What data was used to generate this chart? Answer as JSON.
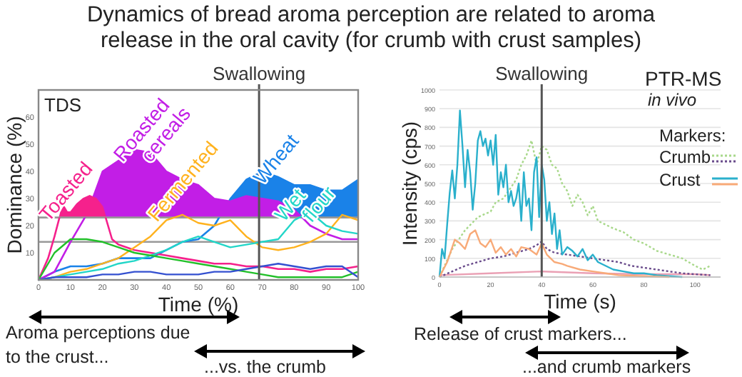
{
  "chart_data": [
    {
      "type": "line",
      "title": "Dynamics of bread aroma perception are related to aroma release in the oral cavity (for crumb with crust samples)",
      "xlabel": "Time (%)",
      "ylabel": "Dominance (%)",
      "x": [
        0,
        5,
        10,
        15,
        20,
        25,
        30,
        35,
        40,
        45,
        50,
        55,
        60,
        65,
        70,
        75,
        80,
        85,
        90,
        95,
        100
      ],
      "series": [
        {
          "name": "Wheat",
          "type": "area",
          "color": "#1a82e8",
          "values": [
            0,
            3,
            5,
            5,
            6,
            8,
            8,
            8,
            11,
            14,
            15,
            20,
            30,
            37,
            40,
            38,
            35,
            35,
            33,
            33,
            37
          ]
        },
        {
          "name": "Roasted cereals",
          "type": "area",
          "color": "#c21ee6",
          "values": [
            0,
            3,
            14,
            24,
            40,
            44,
            48,
            47,
            40,
            37,
            35,
            30,
            29,
            31,
            30,
            29,
            26,
            20,
            17,
            15,
            15
          ]
        },
        {
          "name": "Toasted",
          "type": "area",
          "color": "#f5218c",
          "x": [
            0,
            3,
            5,
            7,
            8,
            9,
            10,
            12,
            14,
            16,
            18,
            20,
            21,
            23,
            25,
            30,
            35,
            40,
            45,
            50,
            55,
            60,
            65,
            70,
            75,
            80,
            85,
            90,
            95,
            100
          ],
          "values": [
            0,
            8,
            16,
            25,
            27,
            25,
            25,
            28,
            30,
            31,
            30,
            27,
            23,
            15,
            13,
            11,
            10,
            9,
            8,
            7,
            6,
            6,
            5,
            5,
            4,
            4,
            3,
            4,
            4,
            5
          ]
        },
        {
          "name": "Fermented",
          "color": "#ffb21e",
          "values": [
            0,
            1,
            3,
            4,
            6,
            8,
            12,
            16,
            22,
            24,
            21,
            20,
            22,
            16,
            12,
            11,
            12,
            14,
            17,
            24,
            22
          ]
        },
        {
          "name": "Wet flour",
          "color": "#22d6c8",
          "values": [
            0,
            1,
            2,
            3,
            4,
            6,
            7,
            9,
            11,
            14,
            16,
            14,
            12,
            13,
            14,
            15,
            22,
            25,
            20,
            18,
            17
          ]
        },
        {
          "color": "#22c02a",
          "values": [
            0,
            10,
            15,
            15,
            14,
            12,
            10,
            9,
            8,
            7,
            6,
            5,
            4,
            3,
            2,
            1,
            1,
            1,
            1,
            1,
            3
          ]
        },
        {
          "color": "#3450d0",
          "values": [
            0,
            1,
            1,
            1,
            2,
            2,
            3,
            3,
            2,
            2,
            2,
            3,
            3,
            4,
            5,
            6,
            5,
            4,
            5,
            5,
            1
          ]
        }
      ],
      "xlim": [
        0,
        100
      ],
      "xticks": [
        0,
        10,
        20,
        30,
        40,
        50,
        60,
        70,
        80,
        90,
        100
      ],
      "ylim": [
        0,
        70
      ],
      "yticks": [
        10,
        20,
        30,
        40,
        50,
        60
      ],
      "ref_lines": [
        {
          "axis": "x",
          "value": 69,
          "label": "Swallowing",
          "color": "#555555"
        },
        {
          "axis": "y",
          "value": 14,
          "color": "#999999"
        },
        {
          "axis": "y",
          "value": 23,
          "color": "#999999"
        }
      ],
      "annotations": [
        "TDS",
        "Aroma perceptions due to the crust...",
        "...vs. the crumb"
      ]
    },
    {
      "type": "line",
      "xlabel": "Time (s)",
      "ylabel": "Intensity (cps)",
      "legend_title": "Markers:",
      "legend": "top right",
      "grid": "y",
      "series": [
        {
          "color": "#eaa0b4",
          "line_style": "solid",
          "x": [
            0,
            20,
            40,
            60,
            80,
            100,
            106
          ],
          "values": [
            10,
            20,
            30,
            20,
            15,
            15,
            10
          ]
        },
        {
          "name": "Crumb",
          "color": "#a8d88a",
          "line_style": "dotted",
          "x": [
            0,
            5,
            10,
            15,
            20,
            22,
            25,
            28,
            30,
            32,
            34,
            36,
            38,
            40,
            42,
            44,
            46,
            48,
            50,
            52,
            54,
            56,
            58,
            60,
            62,
            65,
            68,
            72,
            76,
            80,
            85,
            90,
            95,
            100,
            103,
            106
          ],
          "values": [
            0,
            150,
            250,
            320,
            350,
            400,
            420,
            480,
            520,
            600,
            650,
            730,
            600,
            700,
            680,
            600,
            580,
            500,
            460,
            380,
            440,
            400,
            330,
            380,
            300,
            280,
            260,
            240,
            200,
            180,
            140,
            120,
            100,
            60,
            40,
            60
          ]
        },
        {
          "color": "#6a4c8c",
          "line_style": "dotted",
          "x": [
            0,
            5,
            10,
            15,
            20,
            25,
            30,
            35,
            38,
            40,
            42,
            45,
            50,
            55,
            60,
            65,
            70,
            75,
            80,
            85,
            90,
            95,
            100,
            106
          ],
          "values": [
            0,
            30,
            60,
            80,
            100,
            110,
            130,
            150,
            170,
            190,
            150,
            130,
            120,
            110,
            100,
            90,
            80,
            60,
            50,
            40,
            30,
            20,
            15,
            10
          ]
        },
        {
          "name": "Crust",
          "color": "#2ab0cc",
          "line_style": "solid",
          "x": [
            0,
            1,
            2,
            3,
            4,
            5,
            6,
            7,
            8,
            9,
            10,
            11,
            12,
            13,
            14,
            15,
            16,
            17,
            18,
            19,
            20,
            21,
            22,
            23,
            24,
            25,
            26,
            27,
            28,
            29,
            30,
            31,
            32,
            33,
            34,
            35,
            36,
            37,
            38,
            39,
            40,
            41,
            42,
            43,
            44,
            45,
            46,
            47,
            48,
            50,
            52,
            54,
            56,
            58,
            60,
            62,
            65,
            68,
            72,
            76,
            80,
            85,
            90,
            95
          ],
          "values": [
            0,
            150,
            100,
            280,
            450,
            570,
            420,
            600,
            890,
            700,
            480,
            680,
            560,
            360,
            500,
            730,
            780,
            700,
            740,
            650,
            730,
            600,
            760,
            440,
            560,
            480,
            600,
            400,
            460,
            380,
            420,
            500,
            300,
            560,
            380,
            420,
            250,
            560,
            640,
            320,
            600,
            520,
            300,
            400,
            230,
            340,
            150,
            250,
            120,
            160,
            140,
            110,
            150,
            90,
            120,
            80,
            60,
            40,
            30,
            20,
            20,
            10,
            5,
            0
          ]
        },
        {
          "color": "#f8aa78",
          "line_style": "solid",
          "x": [
            0,
            3,
            6,
            8,
            10,
            12,
            14,
            16,
            18,
            20,
            22,
            24,
            26,
            28,
            30,
            32,
            35,
            38,
            40,
            42,
            45,
            48,
            50,
            55,
            60,
            65,
            70,
            80,
            90
          ],
          "values": [
            0,
            80,
            200,
            180,
            150,
            230,
            250,
            180,
            160,
            200,
            130,
            160,
            120,
            150,
            110,
            160,
            150,
            120,
            180,
            120,
            80,
            70,
            60,
            40,
            30,
            20,
            10,
            5,
            0
          ]
        }
      ],
      "xlim": [
        0,
        110
      ],
      "xticks": [
        0,
        20,
        40,
        60,
        80,
        100
      ],
      "ylim": [
        0,
        1000
      ],
      "yticks": [
        0,
        100,
        200,
        300,
        400,
        500,
        600,
        700,
        800,
        900,
        1000
      ],
      "ref_lines": [
        {
          "axis": "x",
          "value": 40,
          "label": "Swallowing",
          "color": "#555555"
        }
      ],
      "annotations": [
        "PTR-MS",
        "in vivo",
        "Release of crust markers...",
        "...and crumb markers"
      ]
    }
  ]
}
